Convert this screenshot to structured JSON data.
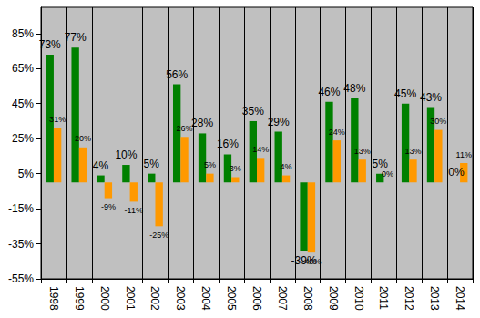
{
  "chart_data": {
    "type": "bar",
    "categories": [
      "1998",
      "1999",
      "2000",
      "2001",
      "2002",
      "2003",
      "2004",
      "2005",
      "2006",
      "2007",
      "2008",
      "2009",
      "2010",
      "2011",
      "2012",
      "2013",
      "2014"
    ],
    "series": [
      {
        "color": "#008000",
        "values": [
          73,
          77,
          4,
          10,
          5,
          56,
          28,
          16,
          35,
          29,
          -39,
          46,
          48,
          5,
          45,
          43,
          0
        ],
        "value_labels": [
          "73%",
          "77%",
          "4%",
          "10%",
          "5%",
          "56%",
          "28%",
          "16%",
          "35%",
          "29%",
          "-39%",
          "46%",
          "48%",
          "5%",
          "45%",
          "43%",
          "0%"
        ]
      },
      {
        "color": "#ff9900",
        "values": [
          31,
          20,
          -9,
          -11,
          -25,
          26,
          5,
          3,
          14,
          4,
          -40,
          24,
          13,
          0,
          13,
          30,
          11
        ],
        "value_labels": [
          "31%",
          "20%",
          "-9%",
          "-11%",
          "-25%",
          "26%",
          "5%",
          "3%",
          "14%",
          "4%",
          "-40%",
          "24%",
          "13%",
          "0%",
          "13%",
          "30%",
          "11%"
        ]
      }
    ],
    "ylim": [
      -55,
      100
    ],
    "yticks": [
      {
        "value": -55,
        "label": "-55%"
      },
      {
        "value": -35,
        "label": "-35%"
      },
      {
        "value": -15,
        "label": "-15%"
      },
      {
        "value": 5,
        "label": "5%"
      },
      {
        "value": 25,
        "label": "25%"
      },
      {
        "value": 45,
        "label": "45%"
      },
      {
        "value": 65,
        "label": "65%"
      },
      {
        "value": 85,
        "label": "85%"
      }
    ],
    "grid": true,
    "data_labels": true
  }
}
